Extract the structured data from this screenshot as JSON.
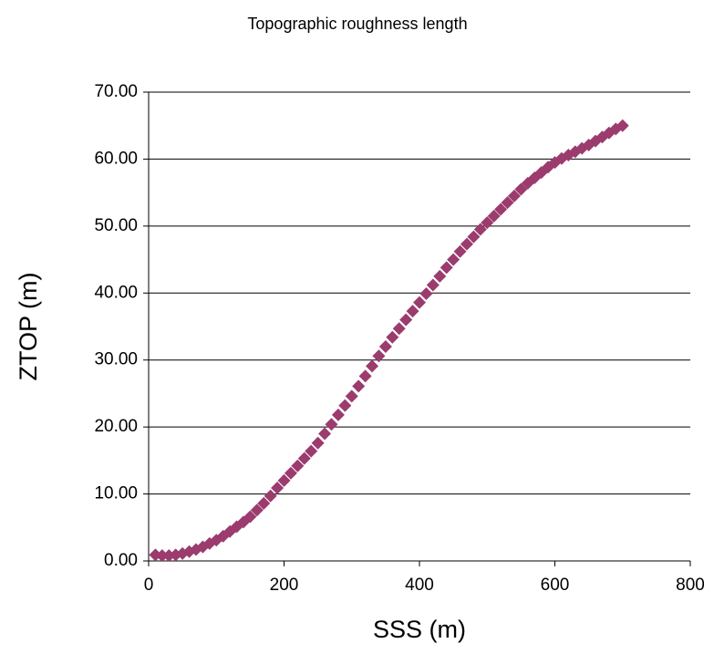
{
  "chart_data": {
    "type": "scatter",
    "title": "Topographic roughness length",
    "xlabel": "SSS (m)",
    "ylabel": "ZTOP (m)",
    "color": "#9b3b6e",
    "grid": true,
    "xlim": [
      0,
      800
    ],
    "xticks": [
      0,
      200,
      400,
      600,
      800
    ],
    "ylim": [
      0,
      70
    ],
    "yticks": [
      {
        "value": 0,
        "label": "0.00"
      },
      {
        "value": 10,
        "label": "10.00"
      },
      {
        "value": 20,
        "label": "20.00"
      },
      {
        "value": 30,
        "label": "30.00"
      },
      {
        "value": 40,
        "label": "40.00"
      },
      {
        "value": 50,
        "label": "50.00"
      },
      {
        "value": 60,
        "label": "60.00"
      },
      {
        "value": 70,
        "label": "70.00"
      }
    ],
    "x": [
      10,
      20,
      30,
      40,
      50,
      60,
      70,
      80,
      90,
      100,
      110,
      120,
      130,
      140,
      150,
      160,
      170,
      180,
      190,
      200,
      210,
      220,
      230,
      240,
      250,
      260,
      270,
      280,
      290,
      300,
      310,
      320,
      330,
      340,
      350,
      360,
      370,
      380,
      390,
      400,
      410,
      420,
      430,
      440,
      450,
      460,
      470,
      480,
      490,
      500,
      510,
      520,
      530,
      540,
      550,
      560,
      570,
      580,
      590,
      600,
      610,
      620,
      630,
      640,
      650,
      660,
      670,
      680,
      690,
      700
    ],
    "values": [
      0.9,
      0.8,
      0.8,
      0.9,
      1.1,
      1.4,
      1.7,
      2.1,
      2.6,
      3.1,
      3.7,
      4.4,
      5.1,
      5.8,
      6.6,
      7.6,
      8.6,
      9.7,
      10.9,
      12.0,
      13.1,
      14.2,
      15.3,
      16.4,
      17.6,
      19.0,
      20.4,
      21.8,
      23.2,
      24.6,
      26.1,
      27.6,
      29.1,
      30.6,
      32.0,
      33.4,
      34.7,
      36.0,
      37.3,
      38.6,
      39.9,
      41.2,
      42.5,
      43.8,
      45.0,
      46.2,
      47.3,
      48.4,
      49.5,
      50.5,
      51.5,
      52.5,
      53.5,
      54.5,
      55.5,
      56.4,
      57.2,
      58.0,
      58.8,
      59.5,
      60.1,
      60.6,
      61.1,
      61.6,
      62.1,
      62.7,
      63.3,
      63.9,
      64.5,
      65.0
    ]
  }
}
